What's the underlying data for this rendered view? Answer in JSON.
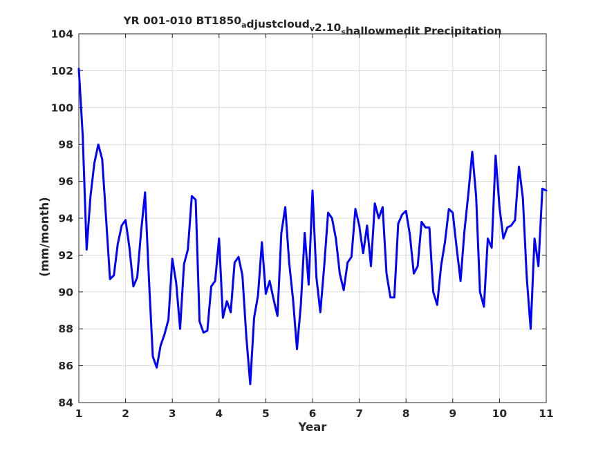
{
  "chart_data": {
    "type": "line",
    "title_parts": [
      {
        "text": "YR 001-010 BT1850",
        "sub": false
      },
      {
        "text": "a",
        "sub": true
      },
      {
        "text": "djustcloud",
        "sub": false
      },
      {
        "text": "v",
        "sub": true
      },
      {
        "text": "2.10",
        "sub": false
      },
      {
        "text": "s",
        "sub": true
      },
      {
        "text": "hallowmedit Precipitation",
        "sub": false
      }
    ],
    "xlabel": "Year",
    "ylabel": "(mm/month)",
    "xlim": [
      1,
      11
    ],
    "ylim": [
      84,
      104
    ],
    "xticks": [
      1,
      2,
      3,
      4,
      5,
      6,
      7,
      8,
      9,
      10,
      11
    ],
    "yticks": [
      84,
      86,
      88,
      90,
      92,
      94,
      96,
      98,
      100,
      102,
      104
    ],
    "grid": true,
    "colors": {
      "series": "#0000ff",
      "axis": "#262626",
      "grid": "#d9d9d9"
    },
    "series": [
      {
        "x": [
          1.0,
          1.083,
          1.167,
          1.25,
          1.333,
          1.417,
          1.5,
          1.583,
          1.667,
          1.75,
          1.833,
          1.917,
          2.0,
          2.083,
          2.167,
          2.25,
          2.333,
          2.417,
          2.5,
          2.583,
          2.667,
          2.75,
          2.833,
          2.917,
          3.0,
          3.083,
          3.167,
          3.25,
          3.333,
          3.417,
          3.5,
          3.583,
          3.667,
          3.75,
          3.833,
          3.917,
          4.0,
          4.083,
          4.167,
          4.25,
          4.333,
          4.417,
          4.5,
          4.583,
          4.667,
          4.75,
          4.833,
          4.917,
          5.0,
          5.083,
          5.167,
          5.25,
          5.333,
          5.417,
          5.5,
          5.583,
          5.667,
          5.75,
          5.833,
          5.917,
          6.0,
          6.083,
          6.167,
          6.25,
          6.333,
          6.417,
          6.5,
          6.583,
          6.667,
          6.75,
          6.833,
          6.917,
          7.0,
          7.083,
          7.167,
          7.25,
          7.333,
          7.417,
          7.5,
          7.583,
          7.667,
          7.75,
          7.833,
          7.917,
          8.0,
          8.083,
          8.167,
          8.25,
          8.333,
          8.417,
          8.5,
          8.583,
          8.667,
          8.75,
          8.833,
          8.917,
          9.0,
          9.083,
          9.167,
          9.25,
          9.333,
          9.417,
          9.5,
          9.583,
          9.667,
          9.75,
          9.833,
          9.917,
          10.0,
          10.083,
          10.167,
          10.25,
          10.333,
          10.417,
          10.5,
          10.583,
          10.667,
          10.75,
          10.833,
          10.917,
          11.0
        ],
        "values": [
          102.1,
          98.5,
          92.3,
          95.2,
          97.0,
          98.0,
          97.2,
          94.0,
          90.7,
          90.9,
          92.6,
          93.6,
          93.9,
          92.4,
          90.3,
          90.8,
          93.3,
          95.4,
          90.7,
          86.5,
          85.9,
          87.1,
          87.7,
          88.5,
          91.8,
          90.5,
          88.0,
          91.5,
          92.3,
          95.2,
          95.0,
          88.4,
          87.8,
          87.9,
          90.3,
          90.6,
          92.9,
          88.6,
          89.5,
          88.9,
          91.6,
          91.9,
          90.9,
          87.6,
          85.0,
          88.6,
          89.8,
          92.7,
          89.9,
          90.6,
          89.6,
          88.7,
          93.2,
          94.6,
          91.6,
          89.6,
          86.9,
          89.3,
          93.2,
          90.4,
          95.5,
          90.8,
          88.9,
          91.4,
          94.3,
          94.0,
          92.9,
          91.0,
          90.1,
          91.6,
          91.9,
          94.5,
          93.6,
          92.1,
          93.6,
          91.4,
          94.8,
          94.0,
          94.6,
          91.0,
          89.7,
          89.7,
          93.7,
          94.2,
          94.4,
          93.1,
          91.0,
          91.4,
          93.8,
          93.5,
          93.5,
          90.0,
          89.3,
          91.4,
          92.7,
          94.5,
          94.3,
          92.4,
          90.6,
          93.3,
          95.3,
          97.6,
          95.2,
          90.0,
          89.2,
          92.9,
          92.4,
          97.4,
          94.6,
          92.9,
          93.5,
          93.6,
          93.9,
          96.8,
          95.1,
          90.8,
          88.0,
          92.9,
          91.4,
          95.6,
          95.5
        ]
      }
    ]
  }
}
